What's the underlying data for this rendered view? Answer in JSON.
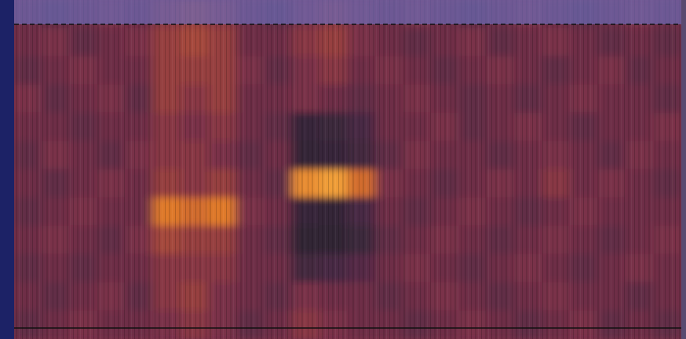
{
  "chart_data": {
    "type": "heatmap",
    "tick_labels": false,
    "zlim": [
      0,
      1
    ],
    "cells": [
      [
        0.45,
        0.4,
        0.45,
        0.5,
        0.45,
        0.55,
        0.6,
        0.55,
        0.45,
        0.4,
        0.5,
        0.55,
        0.5,
        0.45,
        0.5,
        0.45,
        0.4,
        0.45,
        0.5,
        0.45,
        0.4,
        0.45,
        0.5,
        0.45
      ],
      [
        0.45,
        0.5,
        0.4,
        0.45,
        0.5,
        0.6,
        0.65,
        0.6,
        0.45,
        0.45,
        0.55,
        0.6,
        0.5,
        0.45,
        0.4,
        0.45,
        0.5,
        0.4,
        0.45,
        0.5,
        0.45,
        0.4,
        0.45,
        0.4
      ],
      [
        0.4,
        0.45,
        0.5,
        0.45,
        0.45,
        0.6,
        0.6,
        0.6,
        0.5,
        0.4,
        0.5,
        0.55,
        0.45,
        0.5,
        0.45,
        0.4,
        0.45,
        0.5,
        0.45,
        0.4,
        0.45,
        0.5,
        0.4,
        0.45
      ],
      [
        0.5,
        0.4,
        0.45,
        0.5,
        0.4,
        0.6,
        0.55,
        0.6,
        0.45,
        0.45,
        0.5,
        0.45,
        0.4,
        0.45,
        0.5,
        0.45,
        0.4,
        0.45,
        0.4,
        0.45,
        0.5,
        0.45,
        0.45,
        0.4
      ],
      [
        0.45,
        0.45,
        0.4,
        0.45,
        0.45,
        0.55,
        0.5,
        0.55,
        0.45,
        0.4,
        0.15,
        0.2,
        0.3,
        0.45,
        0.45,
        0.5,
        0.4,
        0.45,
        0.5,
        0.45,
        0.4,
        0.45,
        0.45,
        0.5
      ],
      [
        0.4,
        0.5,
        0.45,
        0.4,
        0.5,
        0.55,
        0.55,
        0.5,
        0.4,
        0.45,
        0.12,
        0.15,
        0.25,
        0.4,
        0.5,
        0.45,
        0.45,
        0.4,
        0.45,
        0.5,
        0.45,
        0.4,
        0.5,
        0.45
      ],
      [
        0.45,
        0.4,
        0.45,
        0.5,
        0.45,
        0.6,
        0.55,
        0.6,
        0.45,
        0.4,
        0.9,
        0.95,
        0.8,
        0.5,
        0.45,
        0.4,
        0.45,
        0.5,
        0.45,
        0.55,
        0.45,
        0.5,
        0.45,
        0.4
      ],
      [
        0.4,
        0.45,
        0.5,
        0.45,
        0.45,
        0.85,
        0.8,
        0.85,
        0.5,
        0.45,
        0.15,
        0.12,
        0.3,
        0.45,
        0.4,
        0.45,
        0.5,
        0.45,
        0.4,
        0.45,
        0.5,
        0.45,
        0.45,
        0.45
      ],
      [
        0.45,
        0.5,
        0.45,
        0.4,
        0.5,
        0.65,
        0.6,
        0.6,
        0.45,
        0.4,
        0.1,
        0.1,
        0.2,
        0.4,
        0.45,
        0.5,
        0.45,
        0.4,
        0.45,
        0.5,
        0.45,
        0.4,
        0.45,
        0.5
      ],
      [
        0.4,
        0.45,
        0.4,
        0.45,
        0.45,
        0.55,
        0.55,
        0.55,
        0.45,
        0.45,
        0.25,
        0.3,
        0.35,
        0.45,
        0.5,
        0.45,
        0.4,
        0.45,
        0.5,
        0.45,
        0.4,
        0.45,
        0.5,
        0.45
      ],
      [
        0.45,
        0.4,
        0.45,
        0.5,
        0.4,
        0.55,
        0.6,
        0.5,
        0.45,
        0.4,
        0.5,
        0.45,
        0.45,
        0.4,
        0.45,
        0.5,
        0.45,
        0.4,
        0.45,
        0.5,
        0.45,
        0.45,
        0.4,
        0.45
      ],
      [
        0.4,
        0.45,
        0.5,
        0.45,
        0.45,
        0.5,
        0.55,
        0.5,
        0.4,
        0.45,
        0.55,
        0.5,
        0.45,
        0.45,
        0.4,
        0.45,
        0.5,
        0.45,
        0.4,
        0.45,
        0.5,
        0.4,
        0.45,
        0.4
      ]
    ]
  }
}
